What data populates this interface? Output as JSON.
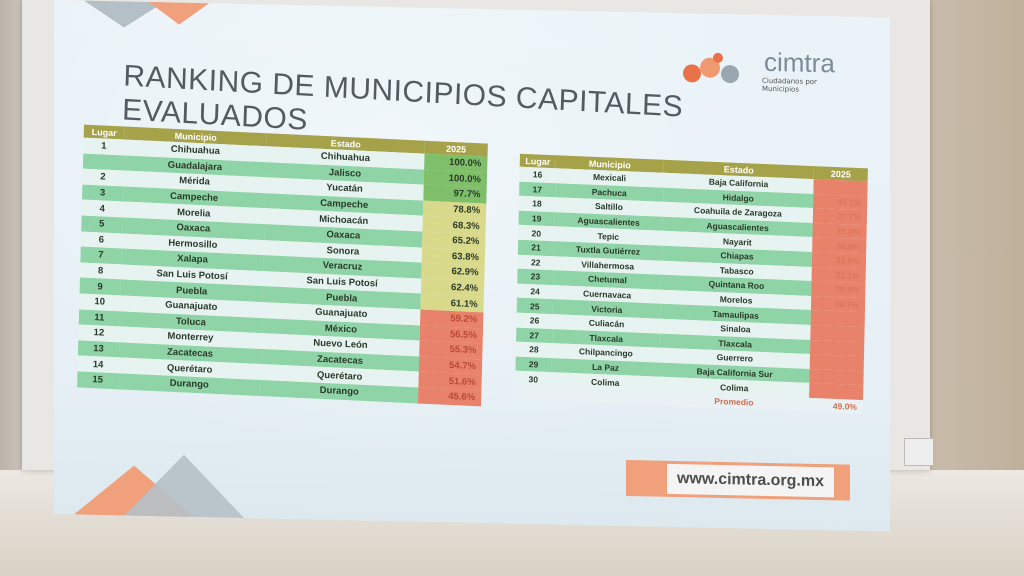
{
  "title": "RANKING DE MUNICIPIOS CAPITALES EVALUADOS",
  "logo": {
    "name": "cimtra",
    "subtitle": "Ciudadanos por Municipios",
    "mark": "cimtra"
  },
  "url": "www.cimtra.org.mx",
  "headers": {
    "lugar": "Lugar",
    "municipio": "Municipio",
    "estado": "Estado",
    "year": "2025"
  },
  "table_left": [
    {
      "lugar": "1",
      "municipio": "Chihuahua",
      "estado": "Chihuahua",
      "valor": "100.0%"
    },
    {
      "lugar": "",
      "municipio": "Guadalajara",
      "estado": "Jalisco",
      "valor": "100.0%"
    },
    {
      "lugar": "2",
      "municipio": "Mérida",
      "estado": "Yucatán",
      "valor": "97.7%"
    },
    {
      "lugar": "3",
      "municipio": "Campeche",
      "estado": "Campeche",
      "valor": "78.8%"
    },
    {
      "lugar": "4",
      "municipio": "Morelia",
      "estado": "Michoacán",
      "valor": "68.3%"
    },
    {
      "lugar": "5",
      "municipio": "Oaxaca",
      "estado": "Oaxaca",
      "valor": "65.2%"
    },
    {
      "lugar": "6",
      "municipio": "Hermosillo",
      "estado": "Sonora",
      "valor": "63.8%"
    },
    {
      "lugar": "7",
      "municipio": "Xalapa",
      "estado": "Veracruz",
      "valor": "62.9%"
    },
    {
      "lugar": "8",
      "municipio": "San Luis Potosí",
      "estado": "San Luis Potosí",
      "valor": "62.4%"
    },
    {
      "lugar": "9",
      "municipio": "Puebla",
      "estado": "Puebla",
      "valor": "61.1%"
    },
    {
      "lugar": "10",
      "municipio": "Guanajuato",
      "estado": "Guanajuato",
      "valor": "59.2%"
    },
    {
      "lugar": "11",
      "municipio": "Toluca",
      "estado": "México",
      "valor": "56.5%"
    },
    {
      "lugar": "12",
      "municipio": "Monterrey",
      "estado": "Nuevo León",
      "valor": "55.3%"
    },
    {
      "lugar": "13",
      "municipio": "Zacatecas",
      "estado": "Zacatecas",
      "valor": "54.7%"
    },
    {
      "lugar": "14",
      "municipio": "Querétaro",
      "estado": "Querétaro",
      "valor": "51.6%"
    },
    {
      "lugar": "15",
      "municipio": "Durango",
      "estado": "Durango",
      "valor": "45.6%"
    }
  ],
  "table_right": [
    {
      "lugar": "16",
      "municipio": "Mexicali",
      "estado": "Baja California",
      "valor": ""
    },
    {
      "lugar": "17",
      "municipio": "Pachuca",
      "estado": "Hidalgo",
      "valor": "45.1%"
    },
    {
      "lugar": "18",
      "municipio": "Saltillo",
      "estado": "Coahuila de Zaragoza",
      "valor": "37.7%"
    },
    {
      "lugar": "19",
      "municipio": "Aguascalientes",
      "estado": "Aguascalientes",
      "valor": "37.0%"
    },
    {
      "lugar": "20",
      "municipio": "Tepic",
      "estado": "Nayarit",
      "valor": "35.5%"
    },
    {
      "lugar": "21",
      "municipio": "Tuxtla Gutiérrez",
      "estado": "Chiapas",
      "valor": "32.6%"
    },
    {
      "lugar": "22",
      "municipio": "Villahermosa",
      "estado": "Tabasco",
      "valor": "32.1%"
    },
    {
      "lugar": "23",
      "municipio": "Chetumal",
      "estado": "Quintana Roo",
      "valor": "28.9%"
    },
    {
      "lugar": "24",
      "municipio": "Cuernavaca",
      "estado": "Morelos",
      "valor": "28.7%"
    },
    {
      "lugar": "25",
      "municipio": "Victoria",
      "estado": "Tamaulipas",
      "valor": ""
    },
    {
      "lugar": "26",
      "municipio": "Culiacán",
      "estado": "Sinaloa",
      "valor": ""
    },
    {
      "lugar": "27",
      "municipio": "Tlaxcala",
      "estado": "Tlaxcala",
      "valor": ""
    },
    {
      "lugar": "28",
      "municipio": "Chilpancingo",
      "estado": "Guerrero",
      "valor": ""
    },
    {
      "lugar": "29",
      "municipio": "La Paz",
      "estado": "Baja California Sur",
      "valor": ""
    },
    {
      "lugar": "30",
      "municipio": "Colima",
      "estado": "Colima",
      "valor": ""
    }
  ],
  "promedio": {
    "label": "Promedio",
    "valor": "49.0%"
  }
}
